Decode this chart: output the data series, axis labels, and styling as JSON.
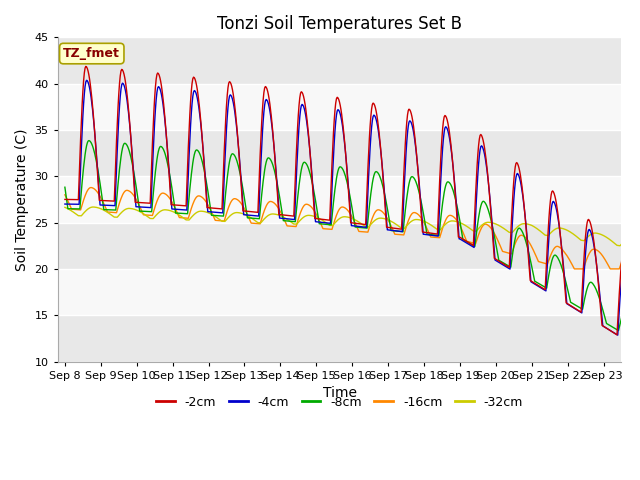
{
  "title": "Tonzi Soil Temperatures Set B",
  "xlabel": "Time",
  "ylabel": "Soil Temperature (C)",
  "ylim": [
    10,
    45
  ],
  "tick_labels": [
    "Sep 8",
    "Sep 9",
    "Sep 10",
    "Sep 11",
    "Sep 12",
    "Sep 13",
    "Sep 14",
    "Sep 15",
    "Sep 16",
    "Sep 17",
    "Sep 18",
    "Sep 19",
    "Sep 20",
    "Sep 21",
    "Sep 22",
    "Sep 23"
  ],
  "legend_entries": [
    "-2cm",
    "-4cm",
    "-8cm",
    "-16cm",
    "-32cm"
  ],
  "line_colors": [
    "#cc0000",
    "#0000cc",
    "#00aa00",
    "#ff8800",
    "#cccc00"
  ],
  "annotation_text": "TZ_fmet",
  "annotation_bg": "#ffffcc",
  "annotation_border": "#aaa000",
  "plot_bg_light": "#f0f0f0",
  "plot_bg_dark": "#d8d8d8",
  "grid_color": "#ffffff",
  "title_fontsize": 12,
  "axis_label_fontsize": 10,
  "tick_fontsize": 8,
  "legend_fontsize": 9
}
